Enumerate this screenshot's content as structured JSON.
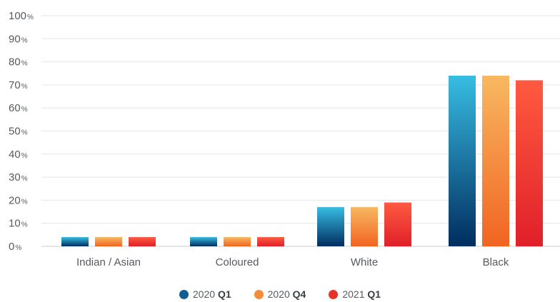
{
  "chart_data": {
    "type": "bar",
    "categories": [
      "Indian / Asian",
      "Coloured",
      "White",
      "Black"
    ],
    "series": [
      {
        "name": "2020 Q1",
        "name_year": "2020",
        "name_quarter": "Q1",
        "values": [
          4,
          4,
          17,
          74
        ],
        "colors": [
          "#38bde3",
          "#002d5f"
        ],
        "legend_color": "#0f5f92"
      },
      {
        "name": "2020 Q4",
        "name_year": "2020",
        "name_quarter": "Q4",
        "values": [
          4,
          4,
          17,
          74
        ],
        "colors": [
          "#f8b861",
          "#f16422"
        ],
        "legend_color": "#f58c3a"
      },
      {
        "name": "2021 Q1",
        "name_year": "2021",
        "name_quarter": "Q1",
        "values": [
          4,
          4,
          19,
          72
        ],
        "colors": [
          "#ff5a40",
          "#e0202a"
        ],
        "legend_color": "#e63329"
      }
    ],
    "yticks": [
      0,
      10,
      20,
      30,
      40,
      50,
      60,
      70,
      80,
      90,
      100
    ],
    "ytick_suffix": "%",
    "ylim": [
      0,
      100
    ],
    "grid": true,
    "legend_position": "bottom"
  }
}
